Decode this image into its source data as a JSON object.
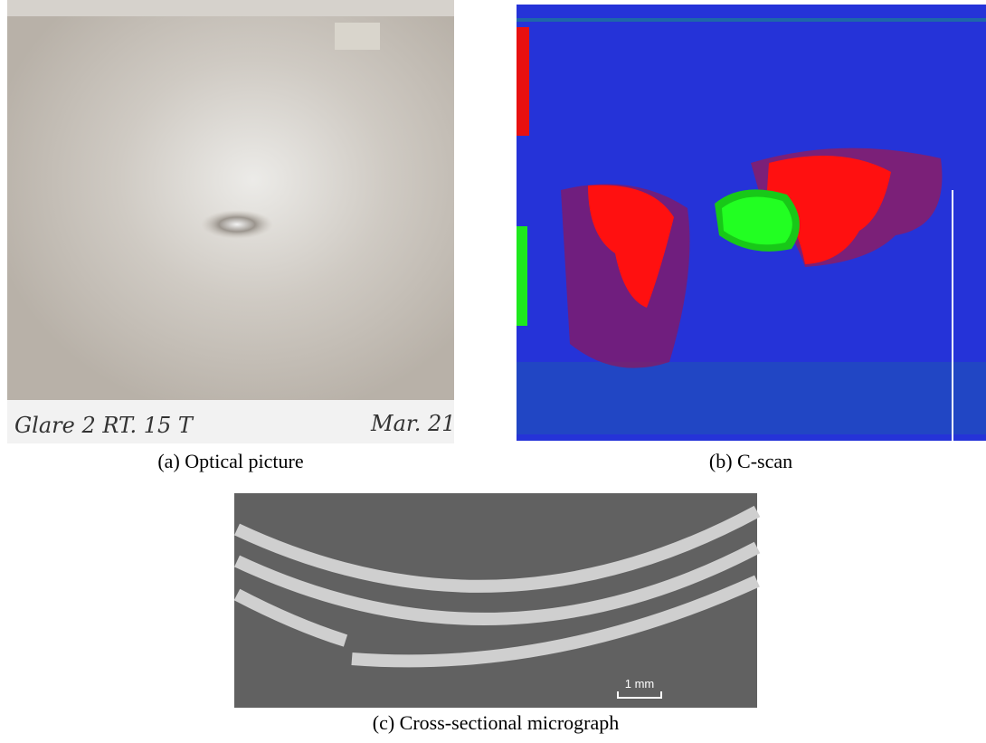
{
  "panels": [
    {
      "caption": "(a) Optical picture",
      "annotations": [
        "Glare 2 RT. 15 T",
        "Mar. 21"
      ]
    },
    {
      "caption": "(b) C-scan"
    },
    {
      "caption": "(c) Cross-sectional micrograph",
      "scale_bar": "1 mm"
    }
  ]
}
